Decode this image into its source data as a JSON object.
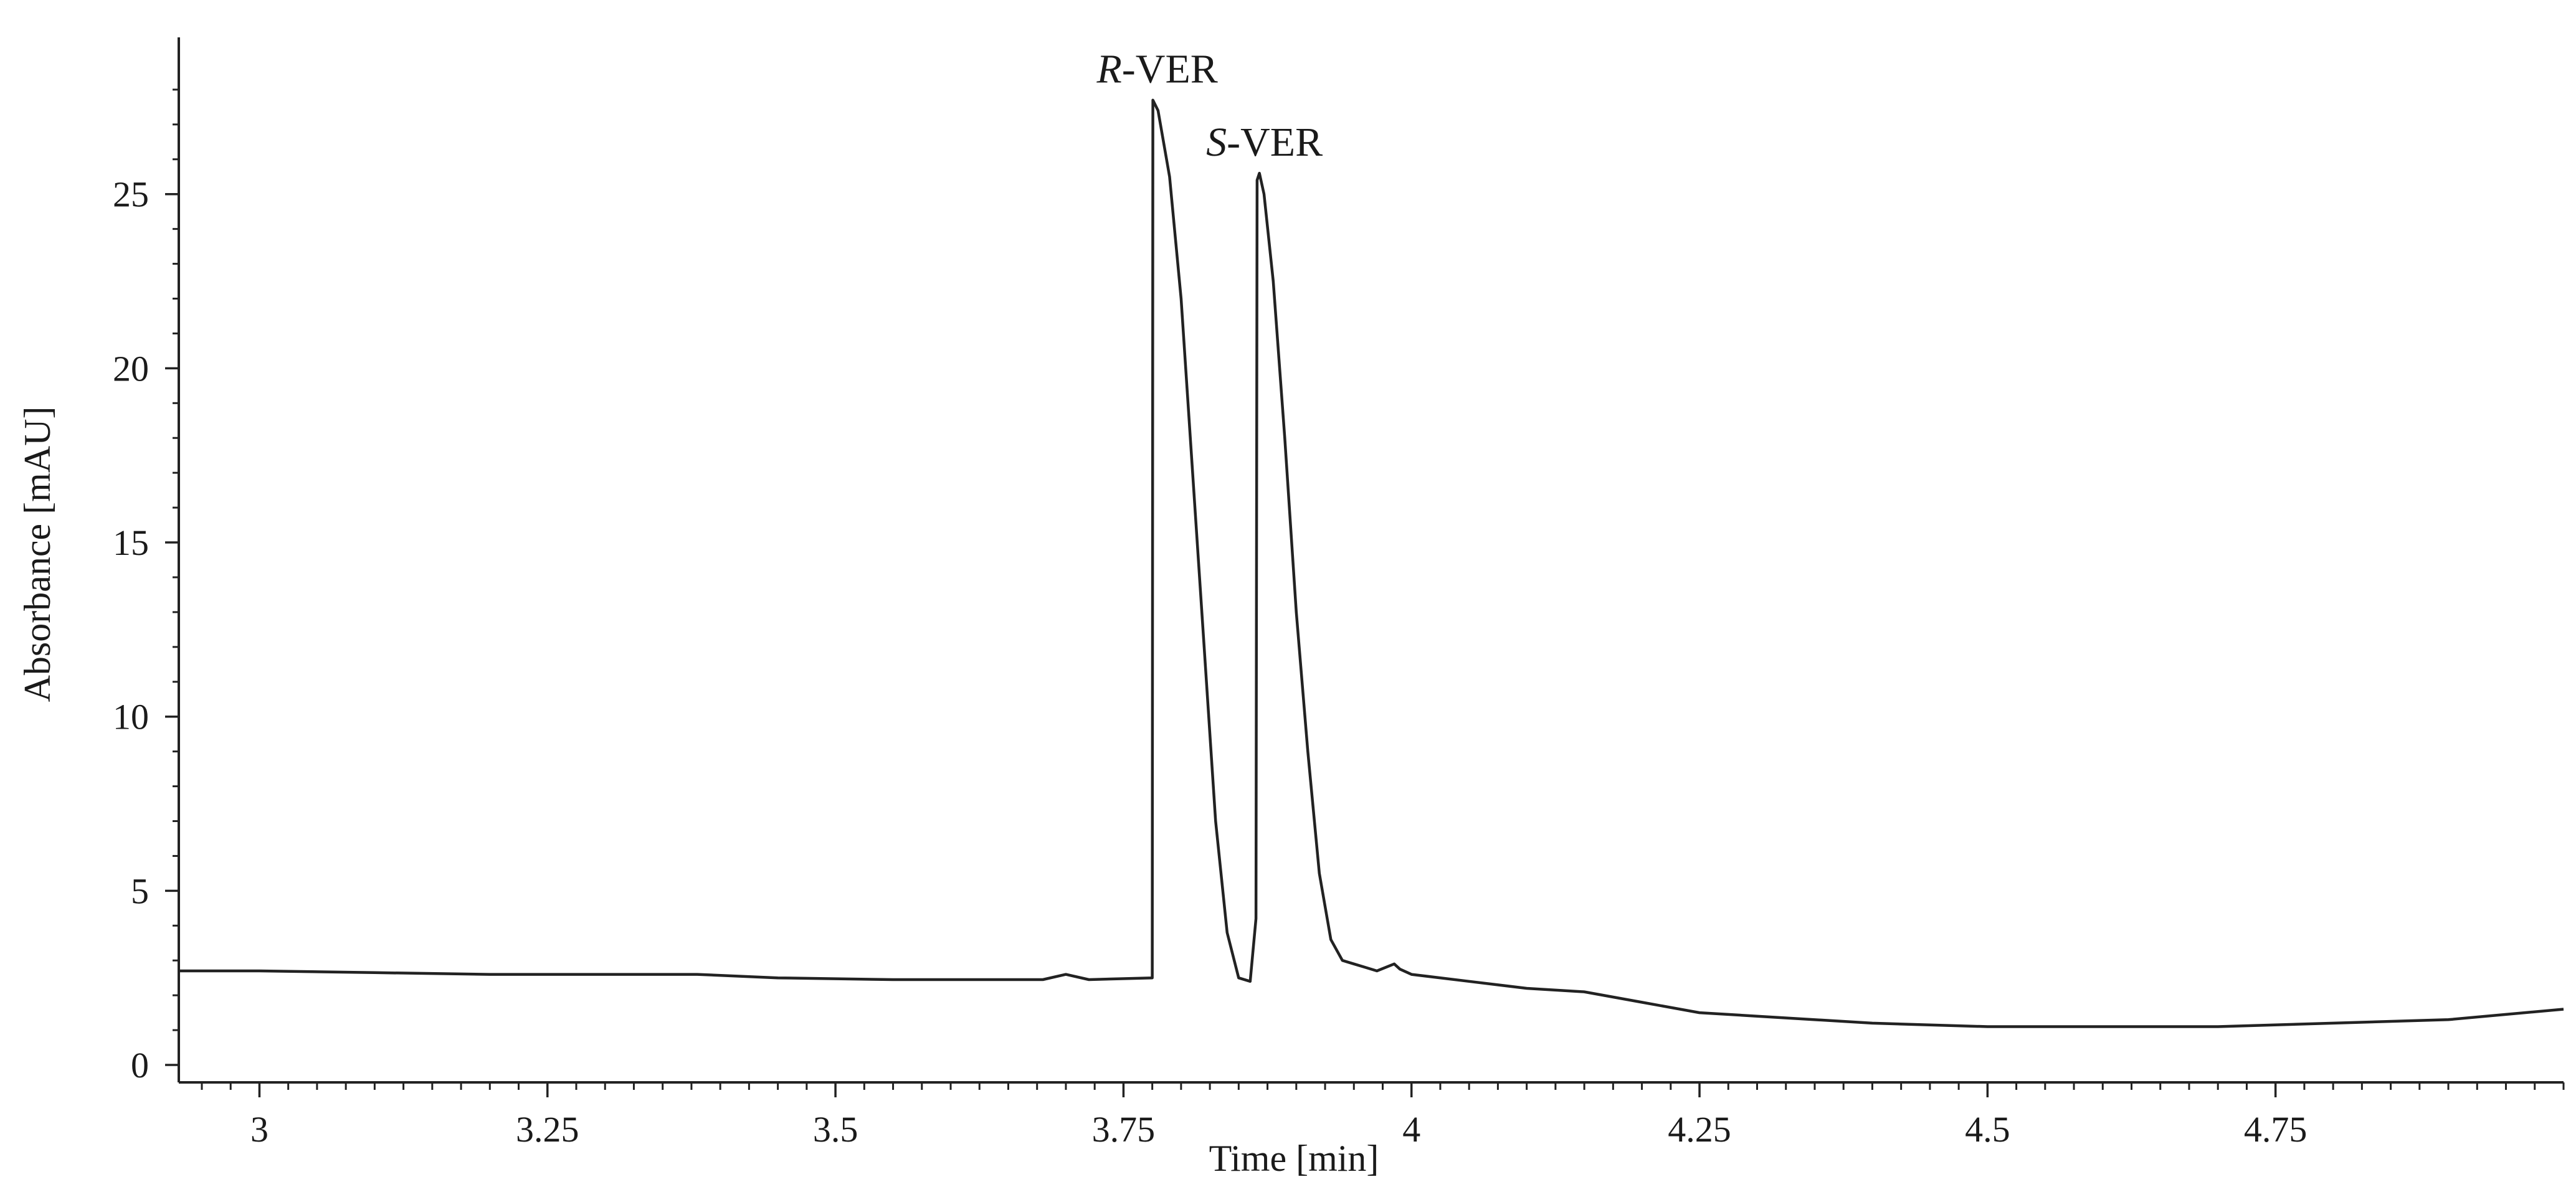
{
  "chart_data": {
    "type": "line",
    "title": "",
    "xlabel": "Time [min]",
    "ylabel": "Absorbance [mAU]",
    "xlim": [
      2.93,
      5.0
    ],
    "ylim": [
      -0.5,
      29.5
    ],
    "grid": false,
    "x_ticks": [
      3,
      3.25,
      3.5,
      3.75,
      4,
      4.25,
      4.5,
      4.75
    ],
    "x_tick_labels": [
      "3",
      "3.25",
      "3.5",
      "3.75",
      "4",
      "4.25",
      "4.5",
      "4.75"
    ],
    "y_ticks": [
      0,
      5,
      10,
      15,
      20,
      25
    ],
    "y_tick_labels": [
      "0",
      "5",
      "10",
      "15",
      "20",
      "25"
    ],
    "series": [
      {
        "x": [
          2.93,
          3.0,
          3.1,
          3.2,
          3.3,
          3.38,
          3.45,
          3.55,
          3.62,
          3.68,
          3.7,
          3.72,
          3.775,
          3.7755,
          3.78,
          3.79,
          3.8,
          3.81,
          3.82,
          3.83,
          3.84,
          3.85,
          3.86,
          3.865,
          3.866,
          3.868,
          3.872,
          3.88,
          3.89,
          3.9,
          3.91,
          3.92,
          3.93,
          3.94,
          3.95,
          3.96,
          3.97,
          3.985,
          3.99,
          4.0,
          4.05,
          4.1,
          4.15,
          4.2,
          4.25,
          4.3,
          4.4,
          4.5,
          4.6,
          4.7,
          4.8,
          4.9,
          5.0
        ],
        "y": [
          2.7,
          2.7,
          2.65,
          2.6,
          2.6,
          2.6,
          2.5,
          2.45,
          2.45,
          2.45,
          2.6,
          2.45,
          2.5,
          27.7,
          27.4,
          25.5,
          22.0,
          17.0,
          12.0,
          7.0,
          3.8,
          2.5,
          2.4,
          4.2,
          25.4,
          25.6,
          25.0,
          22.5,
          18.0,
          13.0,
          9.0,
          5.5,
          3.6,
          3.0,
          2.9,
          2.8,
          2.7,
          2.9,
          2.75,
          2.6,
          2.4,
          2.2,
          2.1,
          1.8,
          1.5,
          1.4,
          1.2,
          1.1,
          1.1,
          1.1,
          1.2,
          1.3,
          1.6
        ]
      }
    ],
    "annotations": [
      {
        "text_prefix": "R",
        "text_suffix": "-VER",
        "x": 3.775,
        "y": 27.7
      },
      {
        "text_prefix": "S",
        "text_suffix": "-VER",
        "x": 3.868,
        "y": 25.6
      }
    ]
  }
}
